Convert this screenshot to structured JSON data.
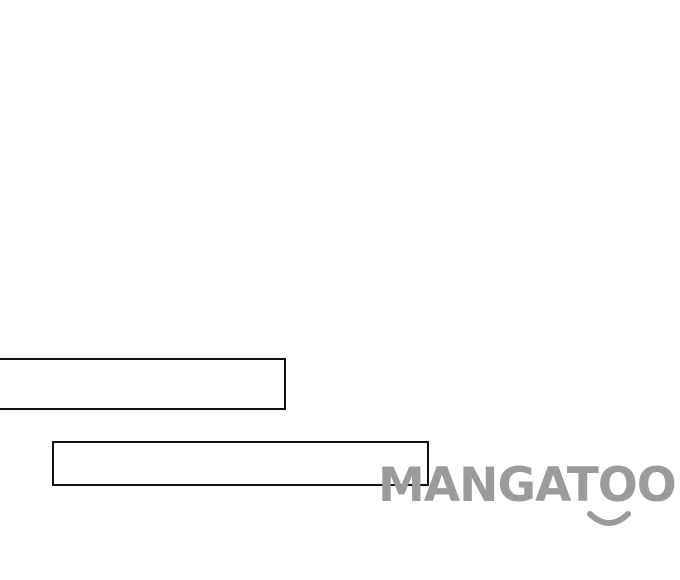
{
  "watermark": {
    "text": "MANGATOON",
    "color": "#9b9b9b"
  },
  "panels": [
    {
      "label": "",
      "border_color": "#111111"
    },
    {
      "label": "",
      "border_color": "#111111"
    }
  ]
}
